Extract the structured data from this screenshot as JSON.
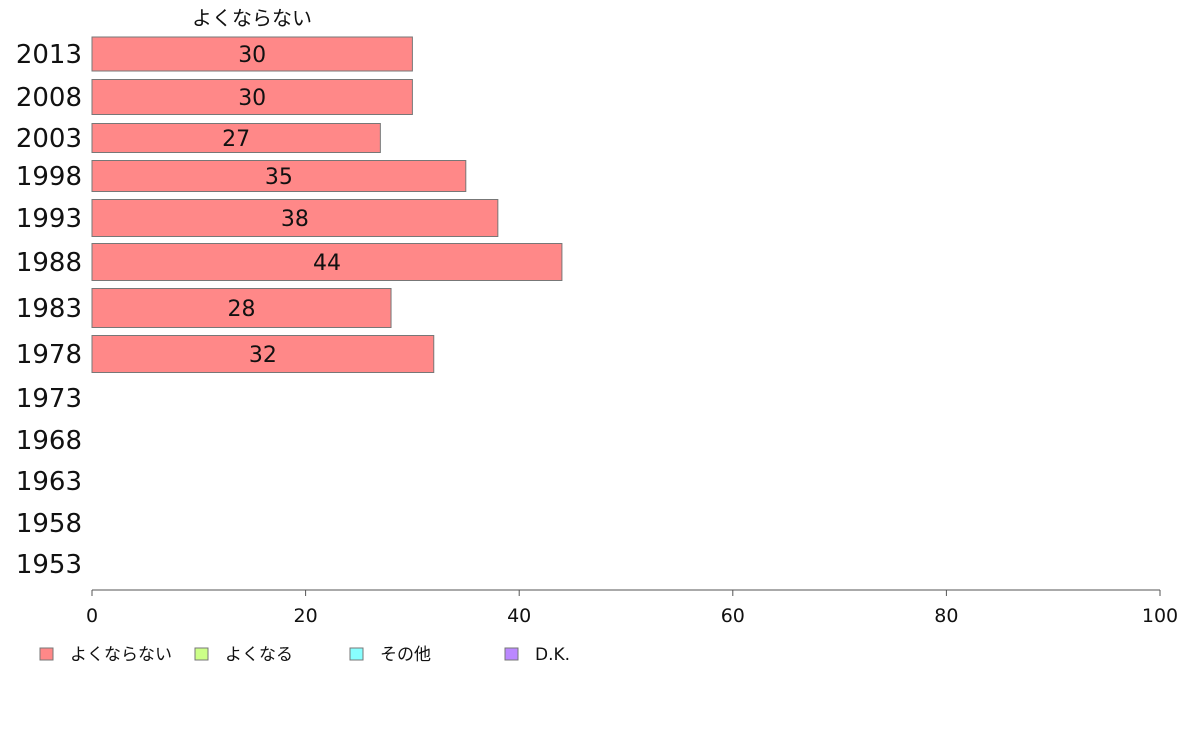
{
  "chart_data": {
    "type": "bar",
    "orientation": "horizontal",
    "categories": [
      "2013",
      "2008",
      "2003",
      "1998",
      "1993",
      "1988",
      "1983",
      "1978",
      "1973",
      "1968",
      "1963",
      "1958",
      "1953"
    ],
    "series": [
      {
        "name": "よくならない",
        "color": "#ff8888",
        "values": [
          30,
          30,
          27,
          35,
          38,
          44,
          28,
          32,
          null,
          null,
          null,
          null,
          null
        ]
      }
    ],
    "series_header": "よくならない",
    "xlim": [
      0,
      100
    ],
    "xticks": [
      0,
      20,
      40,
      60,
      80,
      100
    ],
    "legend_position": "bottom-left",
    "grid": false
  },
  "legend": [
    {
      "label": "よくならない",
      "color": "#ff8888"
    },
    {
      "label": "よくなる",
      "color": "#ccff88"
    },
    {
      "label": "その他",
      "color": "#88ffff"
    },
    {
      "label": "D.K.",
      "color": "#bb88ff"
    }
  ]
}
